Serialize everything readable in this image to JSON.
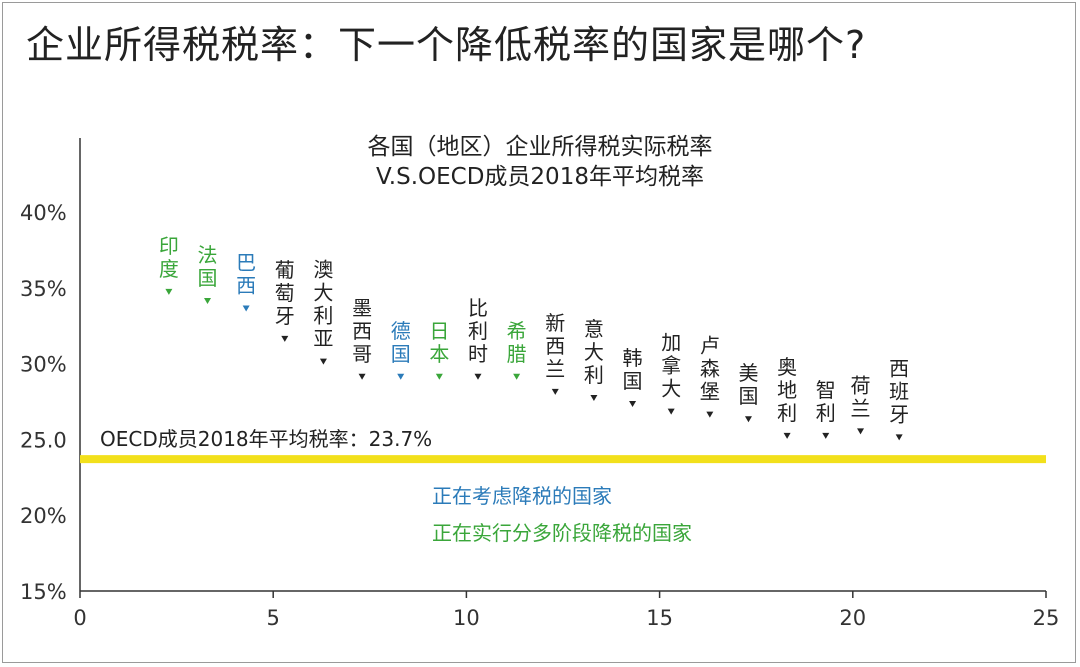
{
  "headline": "企业所得税税率：下一个降低税率的国家是哪个?",
  "colors": {
    "considering": "#2b7bb9",
    "implementing": "#3aa63a",
    "default": "#222222",
    "reference_line": "#f2e01b",
    "axis": "#333333"
  },
  "chart_data": {
    "type": "scatter",
    "title": [
      "各国（地区）企业所得税实际税率",
      "V.S.OECD成员2018年平均税率"
    ],
    "xlabel": "",
    "ylabel": "",
    "xlim": [
      0,
      25
    ],
    "ylim": [
      15,
      43
    ],
    "x_ticks": [
      "0",
      "5",
      "10",
      "15",
      "20",
      "25"
    ],
    "x_tick_values": [
      0,
      5,
      10,
      15,
      20,
      25
    ],
    "y_ticks": [
      "15%",
      "20%",
      "25.0",
      "30%",
      "35%",
      "40%"
    ],
    "y_tick_values": [
      15,
      20,
      25,
      30,
      35,
      40
    ],
    "grid": false,
    "reference_line": {
      "value": 23.7,
      "label": "OECD成员2018年平均税率：23.7%"
    },
    "legend": [
      {
        "label": "正在考虑降税的国家",
        "color_key": "considering"
      },
      {
        "label": "正在实行分多阶段降税的国家",
        "color_key": "implementing"
      }
    ],
    "points": [
      {
        "label": "印度",
        "x": 2.3,
        "y": 34.6,
        "color_key": "implementing"
      },
      {
        "label": "法国",
        "x": 3.3,
        "y": 34.0,
        "color_key": "implementing"
      },
      {
        "label": "巴西",
        "x": 4.3,
        "y": 33.5,
        "color_key": "considering"
      },
      {
        "label": "葡萄牙",
        "x": 5.3,
        "y": 31.5,
        "color_key": "default"
      },
      {
        "label": "澳大利亚",
        "x": 6.3,
        "y": 30.0,
        "color_key": "default"
      },
      {
        "label": "墨西哥",
        "x": 7.3,
        "y": 29.0,
        "color_key": "default"
      },
      {
        "label": "德国",
        "x": 8.3,
        "y": 29.0,
        "color_key": "considering"
      },
      {
        "label": "日本",
        "x": 9.3,
        "y": 29.0,
        "color_key": "implementing"
      },
      {
        "label": "比利时",
        "x": 10.3,
        "y": 29.0,
        "color_key": "default"
      },
      {
        "label": "希腊",
        "x": 11.3,
        "y": 29.0,
        "color_key": "implementing"
      },
      {
        "label": "新西兰",
        "x": 12.3,
        "y": 28.0,
        "color_key": "default"
      },
      {
        "label": "意大利",
        "x": 13.3,
        "y": 27.6,
        "color_key": "default"
      },
      {
        "label": "韩国",
        "x": 14.3,
        "y": 27.2,
        "color_key": "default"
      },
      {
        "label": "加拿大",
        "x": 15.3,
        "y": 26.7,
        "color_key": "default"
      },
      {
        "label": "卢森堡",
        "x": 16.3,
        "y": 26.5,
        "color_key": "default"
      },
      {
        "label": "美国",
        "x": 17.3,
        "y": 26.2,
        "color_key": "default"
      },
      {
        "label": "奥地利",
        "x": 18.3,
        "y": 25.1,
        "color_key": "default"
      },
      {
        "label": "智利",
        "x": 19.3,
        "y": 25.1,
        "color_key": "default"
      },
      {
        "label": "荷兰",
        "x": 20.2,
        "y": 25.4,
        "color_key": "default"
      },
      {
        "label": "西班牙",
        "x": 21.2,
        "y": 25.0,
        "color_key": "default"
      }
    ]
  }
}
